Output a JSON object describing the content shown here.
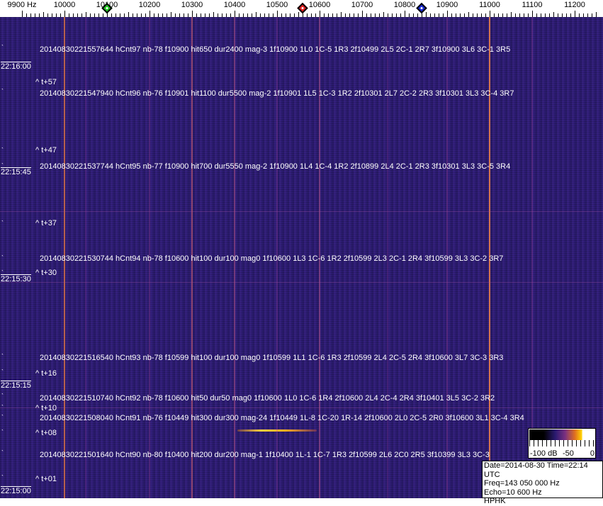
{
  "axis": {
    "unit_label": "9900 Hz",
    "labels": [
      "10000",
      "10100",
      "10200",
      "10300",
      "10400",
      "10500",
      "10600",
      "10700",
      "10800",
      "10900",
      "11000",
      "11100",
      "11200"
    ],
    "range_hz": [
      9900,
      11250
    ]
  },
  "markers": [
    {
      "name": "green",
      "freq_hz": 10100,
      "color": "#22c422"
    },
    {
      "name": "red",
      "freq_hz": 10560,
      "color": "#e02020"
    },
    {
      "name": "blue",
      "freq_hz": 10840,
      "color": "#1a2ad0"
    }
  ],
  "detections": [
    "20140830221557644 hCnt97 nb-78 f10900 hit650 dur2400 mag-3 1f10900 1L0 1C-5 1R3 2f10499 2L5 2C-1 2R7 3f10900 3L6 3C-1 3R5",
    "20140830221547940 hCnt96 nb-76 f10901 hit1100 dur5500 mag-2 1f10901 1L5 1C-3 1R2 2f10301 2L7 2C-2 2R3 3f10301 3L3 3C-4 3R7",
    "20140830221537744 hCnt95 nb-77 f10900 hit700 dur5550 mag-2 1f10900 1L4 1C-4 1R2 2f10899 2L4 2C-1 2R3 3f10301 3L3 3C-5 3R4",
    "20140830221530744 hCnt94 nb-78 f10600 hit100 dur100 mag0 1f10600 1L3 1C-6 1R2 2f10599 2L3 2C-1 2R4 3f10599 3L3 3C-2 3R7",
    "20140830221516540 hCnt93 nb-78 f10599 hit100 dur100 mag0 1f10599 1L1 1C-6 1R3 2f10599 2L4 2C-5 2R4 3f10600 3L7 3C-3 3R3",
    "20140830221510740 hCnt92 nb-78 f10600 hit50 dur50 mag0 1f10600 1L0 1C-6 1R4 2f10600 2L4 2C-4 2R4 3f10401 3L5 3C-2 3R2",
    "20140830221508040 hCnt91 nb-76 f10449 hit300 dur300 mag-24 1f10449 1L-8 1C-20 1R-14 2f10600 2L0 2C-5 2R0 3f10600 3L1 3C-4 3R4",
    "20140830221501640 hCnt90 nb-80 f10400 hit200 dur200 mag-1 1f10400 1L-1 1C-7 1R3 2f10599 2L6 2C0 2R5 3f10399 3L3 3C-3"
  ],
  "offsets": [
    "^ t+57",
    "^ t+47",
    "^ t+37",
    "^ t+30",
    "^ t+16",
    "^ t+10",
    "^ t+08",
    "^ t+01"
  ],
  "timestamps": [
    "22:16:00",
    "22:15:45",
    "22:15:30",
    "22:15:15",
    "22:15:00"
  ],
  "colorbar": {
    "labels": [
      "-100 dB",
      "-50",
      "0"
    ]
  },
  "info": {
    "line1": "Date=2014-08-30 Time=22:14 UTC",
    "line2": "Freq=143 050 000 Hz",
    "line3": "Echo=10 600 Hz",
    "line4": "HPHK"
  },
  "colors": {
    "background": "#2b1c72",
    "carrier": "#e07040",
    "echo": "#ffd040"
  }
}
